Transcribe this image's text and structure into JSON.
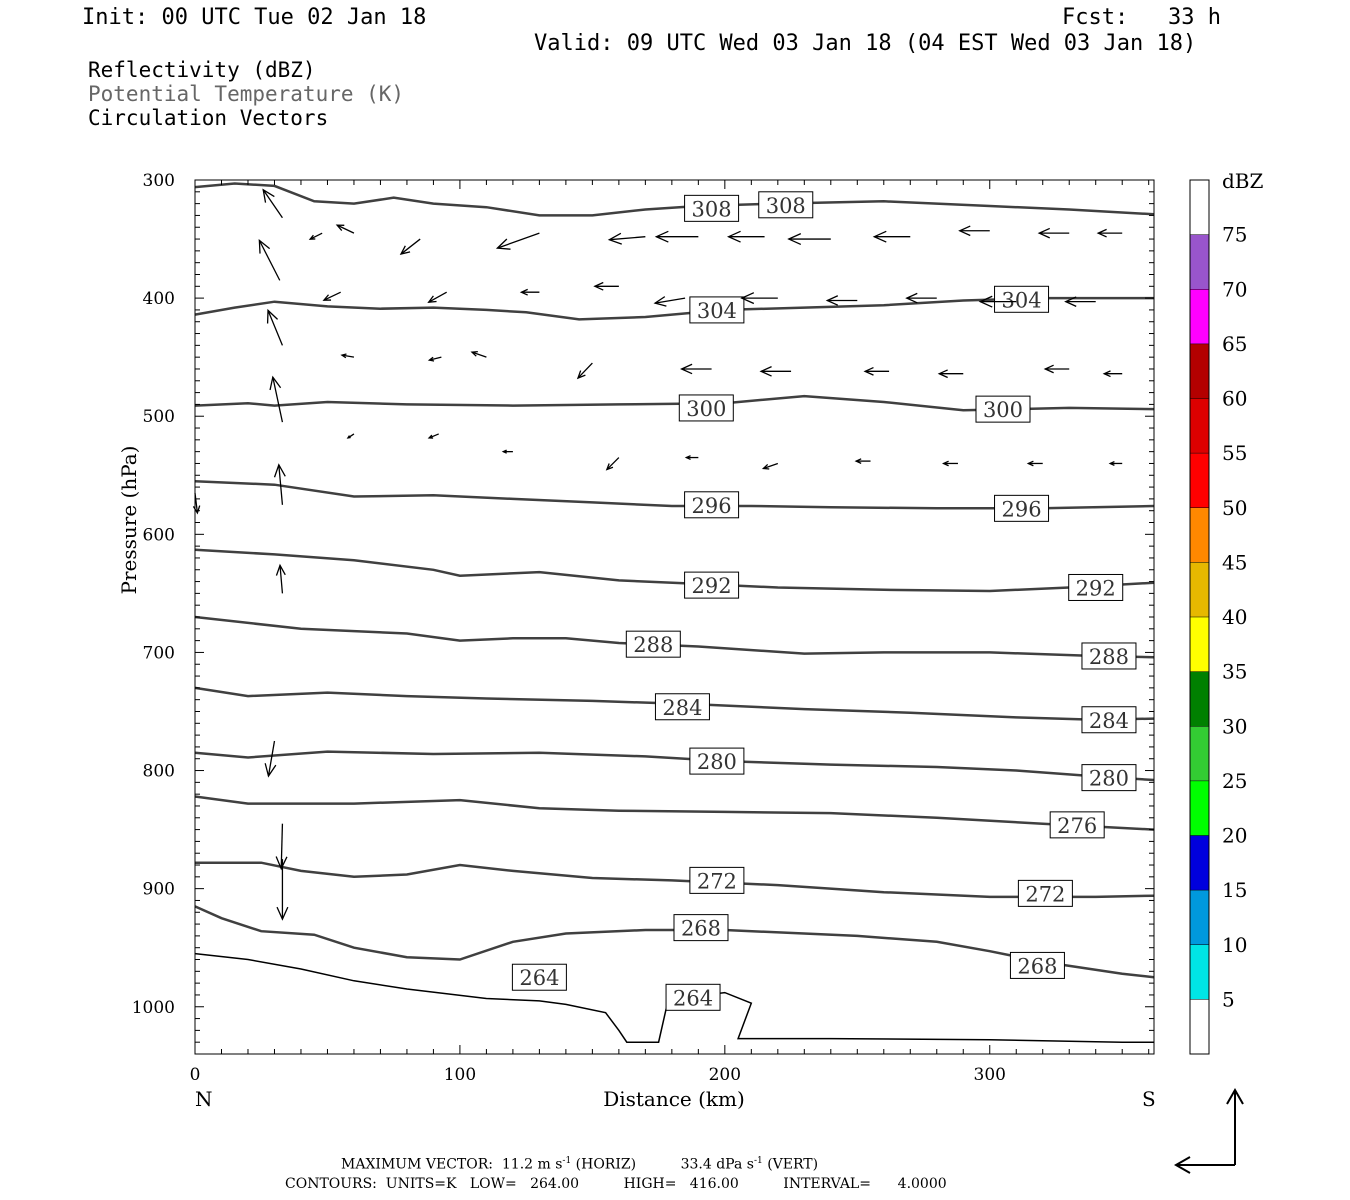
{
  "header": {
    "init": "Init: 00 UTC Tue 02 Jan 18",
    "fcst": "Fcst:   33 h",
    "valid": "Valid: 09 UTC Wed 03 Jan 18 (04 EST Wed 03 Jan 18)"
  },
  "fields": {
    "reflectivity": "Reflectivity (dBZ)",
    "theta": "Potential Temperature (K)",
    "vectors": "Circulation Vectors"
  },
  "colors": {
    "contour": "#404040",
    "label_bg": "#ffffff",
    "theta_text": "#666666"
  },
  "chart_data": {
    "type": "cross-section",
    "xlabel": "Distance (km)",
    "ylabel": "Pressure (hPa)",
    "xlim": [
      0,
      362
    ],
    "ylim": [
      300,
      1040
    ],
    "y_scale": "linear-inverted",
    "xticks": [
      0,
      100,
      200,
      300
    ],
    "yticks": [
      300,
      400,
      500,
      600,
      700,
      800,
      900,
      1000
    ],
    "left_end_label": "N",
    "right_end_label": "S",
    "colorbar": {
      "title": "dBZ",
      "levels": [
        5,
        10,
        15,
        20,
        25,
        30,
        35,
        40,
        45,
        50,
        55,
        60,
        65,
        70,
        75
      ],
      "colors": [
        "#ffffff",
        "#00e5e5",
        "#0099dd",
        "#0000dd",
        "#00ff00",
        "#33cc33",
        "#008000",
        "#ffff00",
        "#e6b800",
        "#ff8800",
        "#ff0000",
        "#dd0000",
        "#b30000",
        "#ff00ff",
        "#9955cc",
        "#ffffff"
      ]
    },
    "contours": [
      {
        "value": 308,
        "label": "308",
        "points": [
          [
            0,
            306
          ],
          [
            15,
            303
          ],
          [
            30,
            305
          ],
          [
            45,
            318
          ],
          [
            60,
            320
          ],
          [
            75,
            315
          ],
          [
            90,
            320
          ],
          [
            110,
            323
          ],
          [
            130,
            330
          ],
          [
            150,
            330
          ],
          [
            170,
            325
          ],
          [
            190,
            322
          ],
          [
            220,
            320
          ],
          [
            260,
            318
          ],
          [
            300,
            322
          ],
          [
            330,
            325
          ],
          [
            362,
            329
          ]
        ],
        "labels_at": [
          [
            195,
            324
          ],
          [
            223,
            321
          ]
        ]
      },
      {
        "value": 304,
        "label": "304",
        "points": [
          [
            0,
            414
          ],
          [
            15,
            408
          ],
          [
            30,
            403
          ],
          [
            50,
            407
          ],
          [
            70,
            409
          ],
          [
            90,
            408
          ],
          [
            110,
            410
          ],
          [
            125,
            412
          ],
          [
            145,
            418
          ],
          [
            170,
            416
          ],
          [
            200,
            410
          ],
          [
            230,
            408
          ],
          [
            260,
            406
          ],
          [
            290,
            402
          ],
          [
            320,
            400
          ],
          [
            362,
            400
          ]
        ],
        "labels_at": [
          [
            197,
            410
          ],
          [
            312,
            401
          ]
        ]
      },
      {
        "value": 300,
        "label": "300",
        "points": [
          [
            0,
            491
          ],
          [
            20,
            489
          ],
          [
            30,
            491
          ],
          [
            50,
            488
          ],
          [
            80,
            490
          ],
          [
            120,
            491
          ],
          [
            160,
            490
          ],
          [
            200,
            489
          ],
          [
            230,
            483
          ],
          [
            260,
            488
          ],
          [
            290,
            495
          ],
          [
            330,
            493
          ],
          [
            362,
            494
          ]
        ],
        "labels_at": [
          [
            193,
            493
          ],
          [
            305,
            494
          ]
        ]
      },
      {
        "value": 296,
        "label": "296",
        "points": [
          [
            0,
            555
          ],
          [
            30,
            558
          ],
          [
            60,
            568
          ],
          [
            90,
            567
          ],
          [
            120,
            570
          ],
          [
            150,
            573
          ],
          [
            180,
            576
          ],
          [
            210,
            576
          ],
          [
            240,
            577
          ],
          [
            280,
            578
          ],
          [
            320,
            578
          ],
          [
            362,
            576
          ]
        ],
        "labels_at": [
          [
            195,
            575
          ],
          [
            312,
            578
          ]
        ]
      },
      {
        "value": 292,
        "label": "292",
        "points": [
          [
            0,
            613
          ],
          [
            30,
            617
          ],
          [
            60,
            622
          ],
          [
            90,
            630
          ],
          [
            100,
            635
          ],
          [
            130,
            632
          ],
          [
            160,
            639
          ],
          [
            190,
            642
          ],
          [
            220,
            645
          ],
          [
            260,
            647
          ],
          [
            300,
            648
          ],
          [
            330,
            645
          ],
          [
            362,
            641
          ]
        ],
        "labels_at": [
          [
            195,
            643
          ],
          [
            340,
            645
          ]
        ]
      },
      {
        "value": 288,
        "label": "288",
        "points": [
          [
            0,
            670
          ],
          [
            40,
            680
          ],
          [
            80,
            684
          ],
          [
            100,
            690
          ],
          [
            120,
            688
          ],
          [
            140,
            688
          ],
          [
            160,
            692
          ],
          [
            190,
            695
          ],
          [
            230,
            701
          ],
          [
            260,
            700
          ],
          [
            300,
            700
          ],
          [
            340,
            703
          ],
          [
            362,
            704
          ]
        ],
        "labels_at": [
          [
            173,
            693
          ],
          [
            345,
            703
          ]
        ]
      },
      {
        "value": 284,
        "label": "284",
        "points": [
          [
            0,
            730
          ],
          [
            20,
            737
          ],
          [
            50,
            734
          ],
          [
            80,
            737
          ],
          [
            110,
            739
          ],
          [
            150,
            741
          ],
          [
            190,
            744
          ],
          [
            230,
            748
          ],
          [
            270,
            751
          ],
          [
            310,
            755
          ],
          [
            340,
            757
          ],
          [
            362,
            756
          ]
        ],
        "labels_at": [
          [
            184,
            746
          ],
          [
            345,
            757
          ]
        ]
      },
      {
        "value": 280,
        "label": "280",
        "points": [
          [
            0,
            785
          ],
          [
            20,
            789
          ],
          [
            50,
            784
          ],
          [
            90,
            786
          ],
          [
            130,
            785
          ],
          [
            170,
            788
          ],
          [
            200,
            792
          ],
          [
            240,
            795
          ],
          [
            280,
            797
          ],
          [
            310,
            800
          ],
          [
            340,
            805
          ],
          [
            362,
            808
          ]
        ],
        "labels_at": [
          [
            197,
            792
          ],
          [
            345,
            806
          ]
        ]
      },
      {
        "value": 276,
        "label": "276",
        "points": [
          [
            0,
            822
          ],
          [
            20,
            828
          ],
          [
            40,
            828
          ],
          [
            60,
            828
          ],
          [
            100,
            825
          ],
          [
            130,
            832
          ],
          [
            160,
            834
          ],
          [
            200,
            835
          ],
          [
            240,
            836
          ],
          [
            280,
            840
          ],
          [
            320,
            845
          ],
          [
            362,
            850
          ]
        ],
        "labels_at": [
          [
            333,
            846
          ]
        ]
      },
      {
        "value": 272,
        "label": "272",
        "points": [
          [
            0,
            878
          ],
          [
            25,
            878
          ],
          [
            40,
            885
          ],
          [
            60,
            890
          ],
          [
            80,
            888
          ],
          [
            100,
            880
          ],
          [
            120,
            885
          ],
          [
            150,
            891
          ],
          [
            180,
            893
          ],
          [
            220,
            897
          ],
          [
            260,
            903
          ],
          [
            300,
            907
          ],
          [
            340,
            907
          ],
          [
            362,
            906
          ]
        ],
        "labels_at": [
          [
            197,
            893
          ],
          [
            321,
            904
          ]
        ]
      },
      {
        "value": 268,
        "label": "268",
        "points": [
          [
            0,
            915
          ],
          [
            10,
            925
          ],
          [
            25,
            936
          ],
          [
            45,
            939
          ],
          [
            60,
            950
          ],
          [
            80,
            958
          ],
          [
            100,
            960
          ],
          [
            120,
            945
          ],
          [
            140,
            938
          ],
          [
            170,
            935
          ],
          [
            200,
            935
          ],
          [
            250,
            940
          ],
          [
            280,
            945
          ],
          [
            300,
            953
          ],
          [
            320,
            962
          ],
          [
            350,
            972
          ],
          [
            362,
            975
          ]
        ],
        "labels_at": [
          [
            191,
            933
          ],
          [
            318,
            965
          ]
        ]
      },
      {
        "value": 264,
        "label": "264",
        "points": [
          [
            0,
            955
          ],
          [
            20,
            960
          ],
          [
            40,
            968
          ],
          [
            60,
            978
          ],
          [
            80,
            985
          ],
          [
            110,
            993
          ],
          [
            130,
            995
          ],
          [
            140,
            998
          ],
          [
            155,
            1005
          ],
          [
            160,
            1020
          ],
          [
            163,
            1030
          ],
          [
            175,
            1030
          ],
          [
            178,
            1000
          ],
          [
            185,
            992
          ],
          [
            200,
            988
          ],
          [
            210,
            997
          ],
          [
            205,
            1027
          ],
          [
            240,
            1027
          ],
          [
            300,
            1028
          ],
          [
            350,
            1030
          ],
          [
            362,
            1030
          ]
        ],
        "labels_at": [
          [
            130,
            975
          ],
          [
            188,
            992
          ]
        ]
      }
    ],
    "vectors_grid": {
      "note": "circulation vectors (horizontal km, vertical hPa components)",
      "vectors": [
        [
          33,
          332,
          -16,
          -28
        ],
        [
          32,
          385,
          -17,
          -40
        ],
        [
          33,
          440,
          -12,
          -35
        ],
        [
          33,
          505,
          -8,
          -45
        ],
        [
          33,
          575,
          -3,
          -40
        ],
        [
          33,
          650,
          -2,
          -28
        ],
        [
          0,
          565,
          2,
          20
        ],
        [
          0,
          630,
          0,
          0
        ],
        [
          30,
          775,
          -5,
          35
        ],
        [
          33,
          845,
          -1,
          45
        ],
        [
          33,
          875,
          0,
          60
        ],
        [
          48,
          345,
          -10,
          6
        ],
        [
          60,
          345,
          -14,
          -8
        ],
        [
          85,
          350,
          -16,
          15
        ],
        [
          130,
          345,
          -35,
          15
        ],
        [
          170,
          348,
          -30,
          3
        ],
        [
          190,
          348,
          -35,
          0
        ],
        [
          215,
          348,
          -30,
          0
        ],
        [
          240,
          350,
          -35,
          0
        ],
        [
          270,
          348,
          -30,
          0
        ],
        [
          300,
          343,
          -25,
          0
        ],
        [
          330,
          345,
          -25,
          0
        ],
        [
          350,
          345,
          -20,
          0
        ],
        [
          55,
          395,
          -14,
          8
        ],
        [
          95,
          395,
          -15,
          10
        ],
        [
          130,
          395,
          -15,
          0
        ],
        [
          160,
          390,
          -20,
          0
        ],
        [
          185,
          400,
          -25,
          5
        ],
        [
          220,
          400,
          -30,
          0
        ],
        [
          250,
          402,
          -25,
          0
        ],
        [
          280,
          400,
          -25,
          0
        ],
        [
          310,
          403,
          -30,
          0
        ],
        [
          340,
          403,
          -25,
          0
        ],
        [
          60,
          450,
          -10,
          -2
        ],
        [
          93,
          450,
          -10,
          3
        ],
        [
          110,
          450,
          -12,
          -5
        ],
        [
          150,
          455,
          -12,
          15
        ],
        [
          195,
          460,
          -25,
          0
        ],
        [
          225,
          462,
          -25,
          0
        ],
        [
          262,
          462,
          -20,
          0
        ],
        [
          290,
          464,
          -20,
          0
        ],
        [
          330,
          460,
          -20,
          0
        ],
        [
          350,
          464,
          -15,
          0
        ],
        [
          60,
          515,
          -5,
          4
        ],
        [
          92,
          515,
          -8,
          4
        ],
        [
          120,
          530,
          -8,
          0
        ],
        [
          160,
          535,
          -10,
          12
        ],
        [
          190,
          535,
          -10,
          0
        ],
        [
          220,
          540,
          -12,
          5
        ],
        [
          255,
          538,
          -12,
          0
        ],
        [
          288,
          540,
          -12,
          0
        ],
        [
          320,
          540,
          -12,
          0
        ],
        [
          350,
          540,
          -10,
          0
        ]
      ]
    },
    "footer": {
      "max_vector": "MAXIMUM VECTOR:  11.2 m s",
      "max_vector_unit_exp": "-1",
      "horiz": "(HORIZ)",
      "vert_val": "33.4 dPa s",
      "vert_unit_exp": "-1",
      "vert": "(VERT)",
      "contours": "CONTOURS:  UNITS=K   LOW=   264.00          HIGH=   416.00          INTERVAL=      4.0000"
    }
  }
}
